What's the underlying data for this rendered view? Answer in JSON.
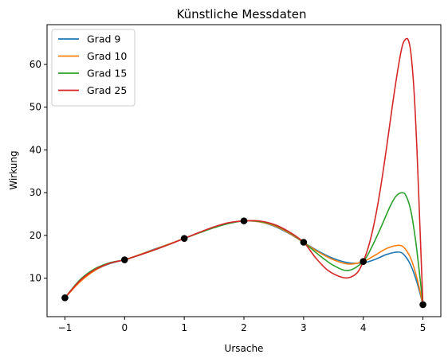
{
  "chart_data": {
    "type": "line",
    "title": "Künstliche Messdaten",
    "xlabel": "Ursache",
    "ylabel": "Wirkung",
    "xlim": [
      -1.3,
      5.3
    ],
    "ylim": [
      1.0,
      69.3
    ],
    "xticks": [
      -1,
      0,
      1,
      2,
      3,
      4,
      5
    ],
    "yticks": [
      10,
      20,
      30,
      40,
      50,
      60
    ],
    "xtick_labels": [
      "−1",
      "0",
      "1",
      "2",
      "3",
      "4",
      "5"
    ],
    "ytick_labels": [
      "10",
      "20",
      "30",
      "40",
      "50",
      "60"
    ],
    "grid": false,
    "legend_position": "top-left",
    "points": {
      "x": [
        -1,
        0,
        1,
        2,
        3,
        4,
        5
      ],
      "y": [
        5.4,
        14.3,
        19.3,
        23.4,
        18.4,
        13.9,
        3.8
      ],
      "color": "#000000"
    },
    "series": [
      {
        "name": "Grad 9",
        "color": "#1f77b4",
        "x": [
          -1,
          -0.75,
          -0.5,
          -0.25,
          0,
          0.25,
          0.5,
          0.75,
          1,
          1.25,
          1.5,
          1.75,
          2,
          2.25,
          2.5,
          2.75,
          3,
          3.25,
          3.5,
          3.75,
          4,
          4.2,
          4.4,
          4.6,
          4.7,
          4.8,
          4.9,
          5
        ],
        "y": [
          5.4,
          9.2,
          11.8,
          13.4,
          14.3,
          15.5,
          16.8,
          18.0,
          19.3,
          20.6,
          21.9,
          22.9,
          23.4,
          23.2,
          22.2,
          20.5,
          18.4,
          16.3,
          14.6,
          13.6,
          13.6,
          14.4,
          15.6,
          16.1,
          15.2,
          12.9,
          9.0,
          3.8
        ]
      },
      {
        "name": "Grad 10",
        "color": "#ff7f0e",
        "x": [
          -1,
          -0.75,
          -0.5,
          -0.25,
          0,
          0.25,
          0.5,
          0.75,
          1,
          1.25,
          1.5,
          1.75,
          2,
          2.25,
          2.5,
          2.75,
          3,
          3.25,
          3.5,
          3.75,
          4,
          4.2,
          4.4,
          4.6,
          4.7,
          4.8,
          4.9,
          5
        ],
        "y": [
          5.4,
          9.1,
          11.8,
          13.5,
          14.3,
          15.5,
          16.7,
          18.0,
          19.3,
          20.6,
          21.9,
          22.9,
          23.4,
          23.2,
          22.3,
          20.6,
          18.4,
          16.1,
          14.3,
          13.3,
          13.9,
          15.4,
          17.0,
          17.7,
          16.9,
          14.5,
          10.0,
          3.8
        ]
      },
      {
        "name": "Grad 15",
        "color": "#2ca02c",
        "x": [
          -1,
          -0.75,
          -0.5,
          -0.25,
          0,
          0.25,
          0.5,
          0.75,
          1,
          1.25,
          1.5,
          1.75,
          2,
          2.25,
          2.5,
          2.75,
          3,
          3.25,
          3.5,
          3.75,
          4,
          4.15,
          4.3,
          4.45,
          4.55,
          4.65,
          4.72,
          4.8,
          4.88,
          4.95,
          5
        ],
        "y": [
          5.4,
          9.6,
          12.2,
          13.6,
          14.3,
          15.4,
          16.6,
          17.9,
          19.3,
          20.6,
          21.8,
          22.8,
          23.4,
          23.3,
          22.5,
          20.8,
          18.4,
          15.5,
          13.0,
          11.8,
          13.9,
          17.5,
          22.0,
          26.8,
          29.2,
          30.0,
          29.2,
          25.6,
          18.5,
          10.2,
          3.8
        ]
      },
      {
        "name": "Grad 25",
        "color": "#d62728",
        "x": [
          -1,
          -0.75,
          -0.5,
          -0.25,
          0,
          0.25,
          0.5,
          0.75,
          1,
          1.25,
          1.5,
          1.75,
          2,
          2.25,
          2.5,
          2.75,
          3,
          3.2,
          3.4,
          3.6,
          3.75,
          3.9,
          4,
          4.1,
          4.2,
          4.3,
          4.4,
          4.5,
          4.6,
          4.66,
          4.72,
          4.76,
          4.8,
          4.85,
          4.9,
          4.95,
          5
        ],
        "y": [
          5.4,
          9.4,
          12.0,
          13.5,
          14.3,
          15.4,
          16.6,
          17.9,
          19.3,
          20.7,
          22.0,
          23.0,
          23.4,
          23.4,
          22.6,
          20.9,
          18.4,
          14.8,
          11.9,
          10.4,
          10.1,
          11.3,
          13.9,
          18.0,
          24.0,
          32.0,
          41.5,
          51.5,
          60.5,
          64.6,
          66.0,
          65.5,
          62.5,
          54.0,
          40.0,
          22.0,
          3.8
        ]
      }
    ]
  }
}
